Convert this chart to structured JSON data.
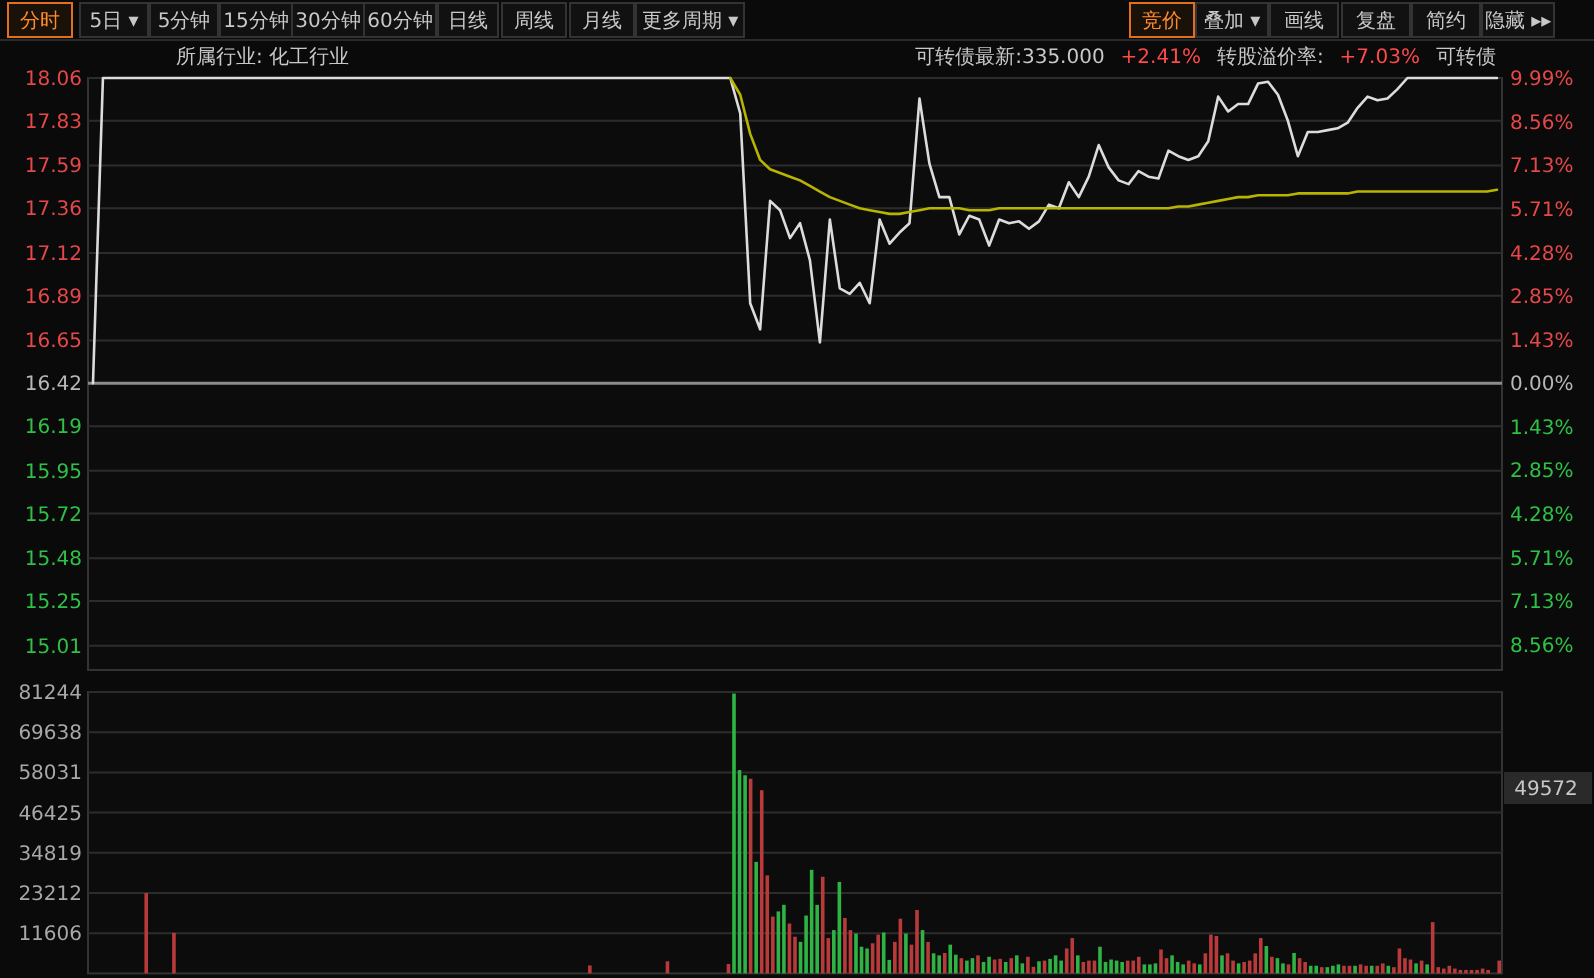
{
  "chart_data": [
    {
      "type": "line",
      "annotations": [
        "分时",
        "5日 ▾",
        "5分钟",
        "15分钟",
        "30分钟",
        "60分钟",
        "日线",
        "周线",
        "月线",
        "更多周期 ▾",
        "竞价",
        "叠加 ▾",
        "画线",
        "复盘",
        "简约",
        "隐藏 ▸▸",
        "所属行业: 化工行业",
        "可转债最新:335.000",
        "+2.41%",
        "转股溢价率:",
        "+7.03%",
        "可转债"
      ],
      "categories": [
        null,
        null,
        null,
        null,
        null,
        null,
        null,
        null,
        null,
        null,
        null,
        null,
        null,
        null,
        null,
        null,
        null,
        null,
        null,
        null,
        null,
        null,
        null,
        null,
        null,
        null,
        null,
        null,
        null,
        null,
        null,
        null,
        null,
        null,
        null,
        null,
        null,
        null,
        null,
        null,
        null,
        null,
        null,
        null,
        null,
        null,
        null,
        null,
        null,
        null,
        null,
        null,
        null,
        null,
        null,
        null,
        null,
        null,
        null,
        null,
        null,
        null,
        null,
        null,
        null,
        null,
        null,
        null,
        null,
        null,
        null,
        null,
        null,
        null,
        null,
        null,
        null,
        null,
        null,
        null,
        null,
        null,
        null,
        null,
        null,
        null,
        null,
        null,
        null,
        null,
        null,
        null,
        null,
        null,
        null,
        null,
        null,
        null,
        null,
        null,
        null,
        null,
        null,
        null,
        null,
        null,
        null,
        null,
        null,
        null,
        null,
        null,
        null,
        null,
        null,
        null,
        null,
        null,
        null,
        null,
        null,
        null,
        null,
        null,
        null,
        null,
        null,
        null,
        null,
        null,
        null,
        null,
        null,
        null,
        null,
        null,
        null,
        null,
        null,
        null,
        null,
        null
      ],
      "series": [
        {
          "color": "#dcdcdc",
          "values": [
            16.42,
            18.06,
            18.06,
            18.06,
            18.06,
            18.06,
            18.06,
            18.06,
            18.06,
            18.06,
            18.06,
            18.06,
            18.06,
            18.06,
            18.06,
            18.06,
            18.06,
            18.06,
            18.06,
            18.06,
            18.06,
            18.06,
            18.06,
            18.06,
            18.06,
            18.06,
            18.06,
            18.06,
            18.06,
            18.06,
            18.06,
            18.06,
            18.06,
            18.06,
            18.06,
            18.06,
            18.06,
            18.06,
            18.06,
            18.06,
            18.06,
            18.06,
            18.06,
            18.06,
            18.06,
            18.06,
            18.06,
            18.06,
            18.06,
            18.06,
            18.06,
            18.06,
            18.06,
            18.06,
            18.06,
            18.06,
            18.06,
            18.06,
            18.06,
            18.06,
            18.06,
            18.06,
            18.06,
            18.06,
            18.06,
            17.87,
            16.85,
            16.71,
            17.4,
            17.35,
            17.2,
            17.28,
            17.08,
            16.64,
            17.3,
            16.93,
            16.9,
            16.96,
            16.85,
            17.3,
            17.17,
            17.23,
            17.28,
            17.95,
            17.6,
            17.42,
            17.42,
            17.22,
            17.32,
            17.3,
            17.16,
            17.3,
            17.28,
            17.29,
            17.25,
            17.29,
            17.38,
            17.36,
            17.5,
            17.42,
            17.53,
            17.7,
            17.58,
            17.51,
            17.49,
            17.56,
            17.53,
            17.52,
            17.67,
            17.64,
            17.62,
            17.64,
            17.72,
            17.96,
            17.88,
            17.92,
            17.92,
            18.03,
            18.04,
            17.97,
            17.83,
            17.64,
            17.77,
            17.77,
            17.78,
            17.79,
            17.82,
            17.9,
            17.96,
            17.94,
            17.95,
            18.0,
            18.06,
            18.06,
            18.06,
            18.06,
            18.06,
            18.06,
            18.06,
            18.06,
            18.06,
            18.06
          ]
        },
        {
          "color": "#b8b400",
          "values": [
            null,
            null,
            null,
            null,
            null,
            null,
            null,
            null,
            null,
            null,
            null,
            null,
            null,
            null,
            null,
            null,
            null,
            null,
            null,
            null,
            null,
            null,
            null,
            null,
            null,
            null,
            null,
            null,
            null,
            null,
            null,
            null,
            null,
            null,
            null,
            null,
            null,
            null,
            null,
            null,
            null,
            null,
            null,
            null,
            null,
            null,
            null,
            null,
            null,
            null,
            null,
            null,
            null,
            null,
            null,
            null,
            null,
            null,
            null,
            null,
            null,
            null,
            null,
            null,
            18.06,
            17.97,
            17.76,
            17.62,
            17.57,
            17.55,
            17.53,
            17.51,
            17.48,
            17.45,
            17.42,
            17.4,
            17.38,
            17.36,
            17.35,
            17.34,
            17.33,
            17.33,
            17.34,
            17.35,
            17.36,
            17.36,
            17.36,
            17.36,
            17.35,
            17.35,
            17.35,
            17.36,
            17.36,
            17.36,
            17.36,
            17.36,
            17.36,
            17.36,
            17.36,
            17.36,
            17.36,
            17.36,
            17.36,
            17.36,
            17.36,
            17.36,
            17.36,
            17.36,
            17.36,
            17.37,
            17.37,
            17.38,
            17.39,
            17.4,
            17.41,
            17.42,
            17.42,
            17.43,
            17.43,
            17.43,
            17.43,
            17.44,
            17.44,
            17.44,
            17.44,
            17.44,
            17.44,
            17.45,
            17.45,
            17.45,
            17.45,
            17.45,
            17.45,
            17.45,
            17.45,
            17.45,
            17.45,
            17.45,
            17.45,
            17.45,
            17.45,
            17.46
          ]
        }
      ],
      "ylim": [
        14.88,
        18.06
      ],
      "yticks": [
        18.06,
        17.83,
        17.59,
        17.36,
        17.12,
        16.89,
        16.65,
        16.42,
        16.19,
        15.95,
        15.72,
        15.48,
        15.25,
        15.01
      ],
      "y2lim": [
        -9.38,
        9.99
      ],
      "y2ticks": [
        {
          "value": 9.99,
          "label": "9.99%"
        },
        {
          "value": 8.56,
          "label": "8.56%"
        },
        {
          "value": 7.13,
          "label": "7.13%"
        },
        {
          "value": 5.71,
          "label": "5.71%"
        },
        {
          "value": 4.28,
          "label": "4.28%"
        },
        {
          "value": 2.85,
          "label": "2.85%"
        },
        {
          "value": 1.43,
          "label": "1.43%"
        },
        {
          "value": 0,
          "label": "0.00%"
        },
        {
          "value": -1.43,
          "label": "1.43%"
        },
        {
          "value": -2.85,
          "label": "2.85%"
        },
        {
          "value": -4.28,
          "label": "4.28%"
        },
        {
          "value": -5.71,
          "label": "5.71%"
        },
        {
          "value": -7.13,
          "label": "7.13%"
        },
        {
          "value": -8.56,
          "label": "8.56%"
        }
      ],
      "ref_lines": [
        {
          "axis": "y",
          "value": 16.42,
          "color": "#8c8c8c"
        }
      ],
      "grid": "y",
      "tick_labels": "y"
    },
    {
      "type": "bar",
      "annotations": [
        "49572"
      ],
      "categories": [
        null,
        null,
        null,
        null,
        null,
        null,
        null,
        null,
        null,
        null,
        null,
        null,
        null,
        null,
        null,
        null,
        null,
        null,
        null,
        null,
        null,
        null,
        null,
        null,
        null,
        null,
        null,
        null,
        null,
        null,
        null,
        null,
        null,
        null,
        null,
        null,
        null,
        null,
        null,
        null,
        null,
        null,
        null,
        null,
        null,
        null,
        null,
        null,
        null,
        null,
        null,
        null,
        null,
        null,
        null,
        null,
        null,
        null,
        null,
        null,
        null,
        null,
        null,
        null,
        null,
        null,
        null,
        null,
        null,
        null,
        null,
        null,
        null,
        null,
        null,
        null,
        null,
        null,
        null,
        null,
        null,
        null,
        null,
        null,
        null,
        null,
        null,
        null,
        null,
        null,
        null,
        null,
        null,
        null,
        null,
        null,
        null,
        null,
        null,
        null,
        null,
        null,
        null,
        null,
        null,
        null,
        null,
        null,
        null,
        null,
        null,
        null,
        null,
        null,
        null,
        null,
        null,
        null,
        null,
        null,
        null,
        null,
        null,
        null,
        null,
        null,
        null,
        null,
        null,
        null,
        null,
        null,
        null,
        null,
        null,
        null,
        null,
        null,
        null,
        null,
        null,
        null,
        null,
        null,
        null,
        null,
        null,
        null,
        null,
        null,
        null,
        null,
        null,
        null,
        null,
        null,
        null,
        null,
        null,
        null,
        null,
        null,
        null,
        null,
        null,
        null,
        null,
        null,
        null,
        null,
        null,
        null,
        null,
        null,
        null,
        null,
        null,
        null,
        null,
        null,
        null,
        null,
        null,
        null,
        null,
        null,
        null,
        null,
        null,
        null,
        null,
        null,
        null,
        null,
        null,
        null,
        null,
        null,
        null,
        null,
        null,
        null,
        null,
        null,
        null,
        null,
        null,
        null,
        null,
        null,
        null,
        null,
        null,
        null,
        null,
        null,
        null,
        null,
        null,
        null,
        null,
        null,
        null,
        null,
        null,
        null,
        null,
        null,
        null,
        null,
        null,
        null,
        null,
        null,
        null,
        null,
        null,
        null,
        null,
        null,
        null,
        null,
        null,
        null,
        null,
        null,
        null,
        null,
        null,
        null,
        null,
        null,
        null,
        null,
        null
      ],
      "series": [
        {
          "color": "#b83a3a",
          "values": [
            null,
            null,
            null,
            null,
            null,
            null,
            null,
            null,
            null,
            null,
            23200,
            null,
            null,
            null,
            null,
            11700,
            null,
            null,
            null,
            null,
            null,
            null,
            null,
            null,
            null,
            null,
            null,
            null,
            null,
            null,
            null,
            null,
            null,
            null,
            null,
            null,
            null,
            null,
            null,
            null,
            null,
            null,
            null,
            null,
            null,
            null,
            null,
            null,
            null,
            null,
            null,
            null,
            null,
            null,
            null,
            null,
            null,
            null,
            null,
            null,
            null,
            null,
            null,
            null,
            null,
            null,
            null,
            null,
            null,
            null,
            null,
            null,
            null,
            null,
            null,
            null,
            null,
            null,
            null,
            null,
            null,
            null,
            null,
            null,
            null,
            null,
            null,
            null,
            null,
            null,
            2300,
            null,
            null,
            null,
            null,
            null,
            null,
            null,
            null,
            null,
            null,
            null,
            null,
            null,
            3500,
            null,
            null,
            null,
            null,
            null,
            null,
            null,
            null,
            null,
            null,
            2700,
            null,
            null,
            null,
            56200,
            null,
            52900,
            28300,
            16400,
            null,
            null,
            14400,
            10600,
            null,
            null,
            null,
            null,
            27900,
            10200,
            null,
            null,
            16000,
            12500,
            null,
            null,
            null,
            8700,
            11200,
            null,
            null,
            9100,
            15800,
            null,
            8300,
            18300,
            null,
            9100,
            null,
            null,
            5900,
            null,
            null,
            4400,
            null,
            null,
            5200,
            null,
            null,
            4000,
            4200,
            null,
            4400,
            null,
            null,
            4800,
            1900,
            null,
            3700,
            null,
            null,
            null,
            7200,
            10200,
            null,
            3300,
            3700,
            3700,
            null,
            null,
            null,
            null,
            null,
            3700,
            3700,
            4800,
            null,
            null,
            null,
            6900,
            4400,
            null,
            null,
            null,
            3700,
            2900,
            null,
            5800,
            11200,
            10800,
            null,
            5800,
            3700,
            null,
            3300,
            3700,
            5800,
            10200,
            null,
            4800,
            null,
            null,
            2600,
            null,
            4400,
            3300,
            null,
            null,
            1800,
            null,
            null,
            null,
            2200,
            2200,
            null,
            2600,
            2200,
            null,
            2200,
            2900,
            null,
            1800,
            7200,
            4400,
            4000,
            null,
            3700,
            null,
            14800,
            1800,
            1400,
            2200,
            1400,
            1000,
            1000,
            1000,
            1000,
            1400,
            1000,
            null,
            3700
          ]
        },
        {
          "color": "#2fb344",
          "values": [
            null,
            null,
            null,
            null,
            null,
            null,
            null,
            null,
            null,
            null,
            null,
            null,
            null,
            null,
            null,
            null,
            null,
            null,
            null,
            null,
            null,
            null,
            null,
            null,
            null,
            null,
            null,
            null,
            null,
            null,
            null,
            null,
            null,
            null,
            null,
            null,
            null,
            null,
            null,
            null,
            null,
            null,
            null,
            null,
            null,
            null,
            null,
            null,
            null,
            null,
            null,
            null,
            null,
            null,
            null,
            null,
            null,
            null,
            null,
            null,
            null,
            null,
            null,
            null,
            null,
            null,
            null,
            null,
            null,
            null,
            null,
            null,
            null,
            null,
            null,
            null,
            null,
            null,
            null,
            null,
            null,
            null,
            null,
            null,
            null,
            null,
            null,
            null,
            null,
            null,
            null,
            null,
            null,
            null,
            null,
            null,
            null,
            null,
            null,
            null,
            null,
            null,
            null,
            null,
            null,
            null,
            null,
            null,
            null,
            null,
            null,
            null,
            null,
            null,
            null,
            null,
            80800,
            58700,
            57200,
            null,
            32200,
            null,
            null,
            null,
            17900,
            19800,
            null,
            null,
            9100,
            16700,
            29900,
            19800,
            null,
            null,
            12500,
            26400,
            null,
            null,
            11500,
            7700,
            7200,
            null,
            null,
            11800,
            3900,
            null,
            null,
            11500,
            null,
            null,
            12500,
            null,
            5800,
            5200,
            null,
            8300,
            5400,
            null,
            3700,
            4400,
            null,
            3300,
            4800,
            null,
            null,
            3300,
            null,
            5200,
            2900,
            null,
            null,
            3500,
            null,
            4200,
            5200,
            3700,
            null,
            null,
            5200,
            null,
            null,
            null,
            7700,
            3300,
            4000,
            3700,
            3300,
            null,
            null,
            null,
            2600,
            2600,
            2900,
            null,
            null,
            5200,
            3300,
            2600,
            null,
            null,
            2600,
            null,
            null,
            null,
            5200,
            null,
            null,
            2900,
            null,
            null,
            null,
            null,
            7900,
            null,
            4400,
            2900,
            null,
            5900,
            null,
            null,
            2200,
            2200,
            null,
            1800,
            2200,
            2600,
            null,
            null,
            2200,
            null,
            null,
            2200,
            null,
            null,
            2200,
            null,
            null,
            null,
            null,
            2900,
            null,
            2600,
            null,
            null,
            null,
            null,
            null,
            null,
            null,
            null,
            null,
            null,
            null,
            null,
            null
          ]
        }
      ],
      "ylim": [
        0,
        81244
      ],
      "yticks": [
        81244,
        69638,
        58031,
        46425,
        34819,
        23212,
        11606
      ],
      "grid": "y",
      "tick_labels": "y"
    }
  ]
}
